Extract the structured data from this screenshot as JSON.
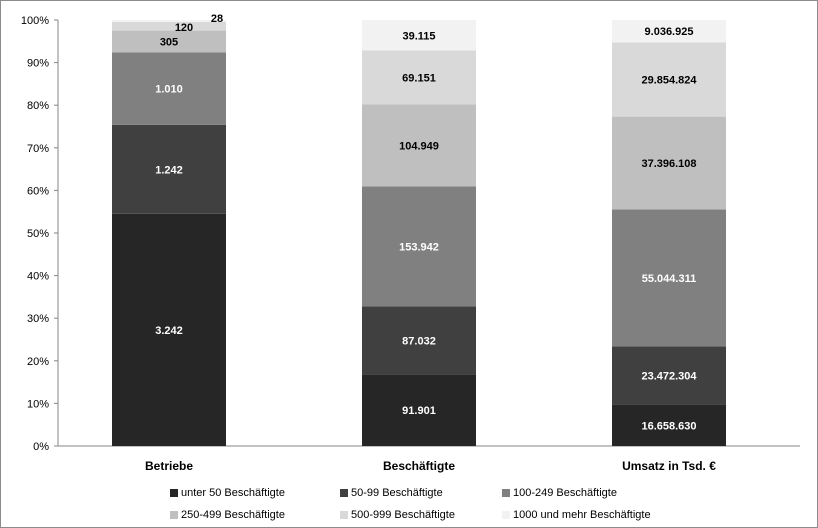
{
  "chart_data": {
    "type": "bar",
    "stacked": "percent",
    "categories": [
      "Betriebe",
      "Beschäftigte",
      "Umsatz in Tsd. €"
    ],
    "series": [
      {
        "name": "unter 50 Beschäftigte",
        "color": "#262626",
        "label_color": "#ffffff",
        "values": [
          3242,
          91901,
          16658630
        ],
        "labels": [
          "3.242",
          "91.901",
          "16.658.630"
        ]
      },
      {
        "name": "50-99 Beschäftigte",
        "color": "#404040",
        "label_color": "#ffffff",
        "values": [
          1242,
          87032,
          23472304
        ],
        "labels": [
          "1.242",
          "87.032",
          "23.472.304"
        ]
      },
      {
        "name": "100-249 Beschäftigte",
        "color": "#808080",
        "label_color": "#ffffff",
        "values": [
          1010,
          153942,
          55044311
        ],
        "labels": [
          "1.010",
          "153.942",
          "55.044.311"
        ]
      },
      {
        "name": "250-499 Beschäftigte",
        "color": "#bfbfbf",
        "label_color": "#000000",
        "values": [
          305,
          104949,
          37396108
        ],
        "labels": [
          "305",
          "104.949",
          "37.396.108"
        ]
      },
      {
        "name": "500-999 Beschäftigte",
        "color": "#d9d9d9",
        "label_color": "#000000",
        "values": [
          120,
          69151,
          29854824
        ],
        "labels": [
          "120",
          "69.151",
          "29.854.824"
        ]
      },
      {
        "name": "1000 und mehr Beschäftigte",
        "color": "#f2f2f2",
        "label_color": "#000000",
        "values": [
          28,
          39115,
          9036925
        ],
        "labels": [
          "28",
          "39.115",
          "9.036.925"
        ]
      }
    ],
    "yticks": [
      "0%",
      "10%",
      "20%",
      "30%",
      "40%",
      "50%",
      "60%",
      "70%",
      "80%",
      "90%",
      "100%"
    ],
    "ylim": [
      0,
      100
    ],
    "grid": false,
    "legend_position": "bottom"
  }
}
